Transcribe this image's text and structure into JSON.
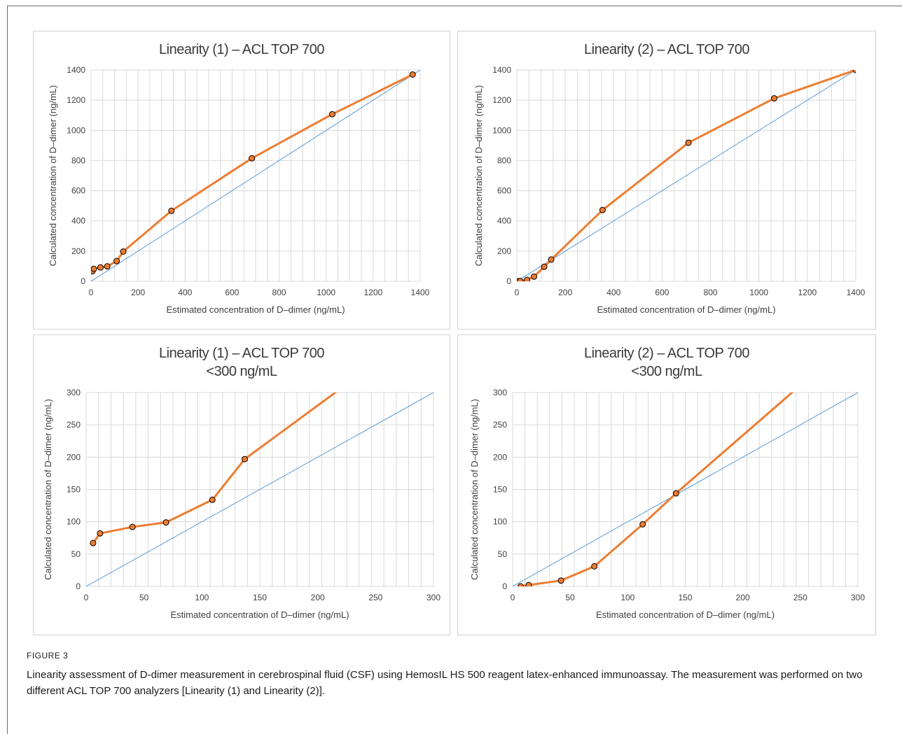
{
  "figure": {
    "label": "FIGURE 3",
    "caption": "Linearity assessment of D-dimer measurement in cerebrospinal fluid (CSF) using HemosIL HS 500 reagent latex-enhanced immunoassay. The measurement was performed on two different ACL TOP 700 analyzers [Linearity (1) and Linearity (2)]."
  },
  "colors": {
    "series": "#ED7D31",
    "identity": "#5B9BD5",
    "grid": "#D9D9D9",
    "marker_edge": "#000000",
    "axis_text": "#404040"
  },
  "chart_data": [
    {
      "type": "line",
      "title": "Linearity (1) – ACL TOP 700",
      "subtitle": "",
      "xlabel": "Estimated  concentration  of D–dimer (ng/mL)",
      "ylabel": "Calculated concentration of D–dimer (ng/mL)",
      "xlim": [
        0,
        1400
      ],
      "ylim": [
        0,
        1400
      ],
      "xticks": [
        0,
        200,
        400,
        600,
        800,
        1000,
        1200,
        1400
      ],
      "yticks": [
        0,
        200,
        400,
        600,
        800,
        1000,
        1200,
        1400
      ],
      "grid": true,
      "series": [
        {
          "x": [
            6,
            12,
            40,
            69,
            109,
            137,
            342,
            684,
            1026,
            1368
          ],
          "y": [
            67,
            82,
            92,
            99,
            134,
            197,
            467,
            815,
            1107,
            1370
          ]
        },
        {
          "x": [
            0,
            1400
          ],
          "y": [
            0,
            1400
          ]
        }
      ]
    },
    {
      "type": "line",
      "title": "Linearity (2) – ACL TOP 700",
      "subtitle": "",
      "xlabel": "Estimated concentration of D–dimer (ng/mL)",
      "ylabel": "Calculated concentration of D–dimer (ng/mL)",
      "xlim": [
        0,
        1400
      ],
      "ylim": [
        0,
        1400
      ],
      "xticks": [
        0,
        200,
        400,
        600,
        800,
        1000,
        1200,
        1400
      ],
      "yticks": [
        0,
        200,
        400,
        600,
        800,
        1000,
        1200,
        1400
      ],
      "grid": true,
      "series": [
        {
          "x": [
            7,
            14,
            42,
            71,
            113,
            142,
            354,
            709,
            1063,
            1400
          ],
          "y": [
            0,
            2,
            9,
            31,
            96,
            144,
            472,
            918,
            1212,
            1400
          ]
        },
        {
          "x": [
            0,
            1400
          ],
          "y": [
            0,
            1400
          ]
        }
      ]
    },
    {
      "type": "line",
      "title": "Linearity (1) – ACL TOP 700",
      "subtitle": "<300 ng/mL",
      "xlabel": "Estimated concentration of D–dimer (ng/mL)",
      "ylabel": "Calculated concentration of D–dimer (ng/mL)",
      "xlim": [
        0,
        300
      ],
      "ylim": [
        0,
        300
      ],
      "xticks": [
        0,
        50,
        100,
        150,
        200,
        250,
        300
      ],
      "yticks": [
        0,
        50,
        100,
        150,
        200,
        250,
        300
      ],
      "grid": true,
      "series": [
        {
          "x": [
            6,
            12,
            40,
            69,
            109,
            137,
            342
          ],
          "y": [
            67,
            82,
            92,
            99,
            134,
            197,
            467
          ]
        },
        {
          "x": [
            0,
            300
          ],
          "y": [
            0,
            300
          ]
        }
      ]
    },
    {
      "type": "line",
      "title": "Linearity (2) – ACL TOP 700",
      "subtitle": "<300 ng/mL",
      "xlabel": "Estimated concentration of D–dimer (ng/mL)",
      "ylabel": "Calculated concentration of D–dimer  (ng/mL)",
      "xlim": [
        0,
        300
      ],
      "ylim": [
        0,
        300
      ],
      "xticks": [
        0,
        50,
        100,
        150,
        200,
        250,
        300
      ],
      "yticks": [
        0,
        50,
        100,
        150,
        200,
        250,
        300
      ],
      "grid": true,
      "series": [
        {
          "x": [
            7,
            14,
            42,
            71,
            113,
            142,
            354
          ],
          "y": [
            0,
            2,
            9,
            31,
            96,
            144,
            472
          ]
        },
        {
          "x": [
            0,
            300
          ],
          "y": [
            0,
            300
          ]
        }
      ]
    }
  ]
}
